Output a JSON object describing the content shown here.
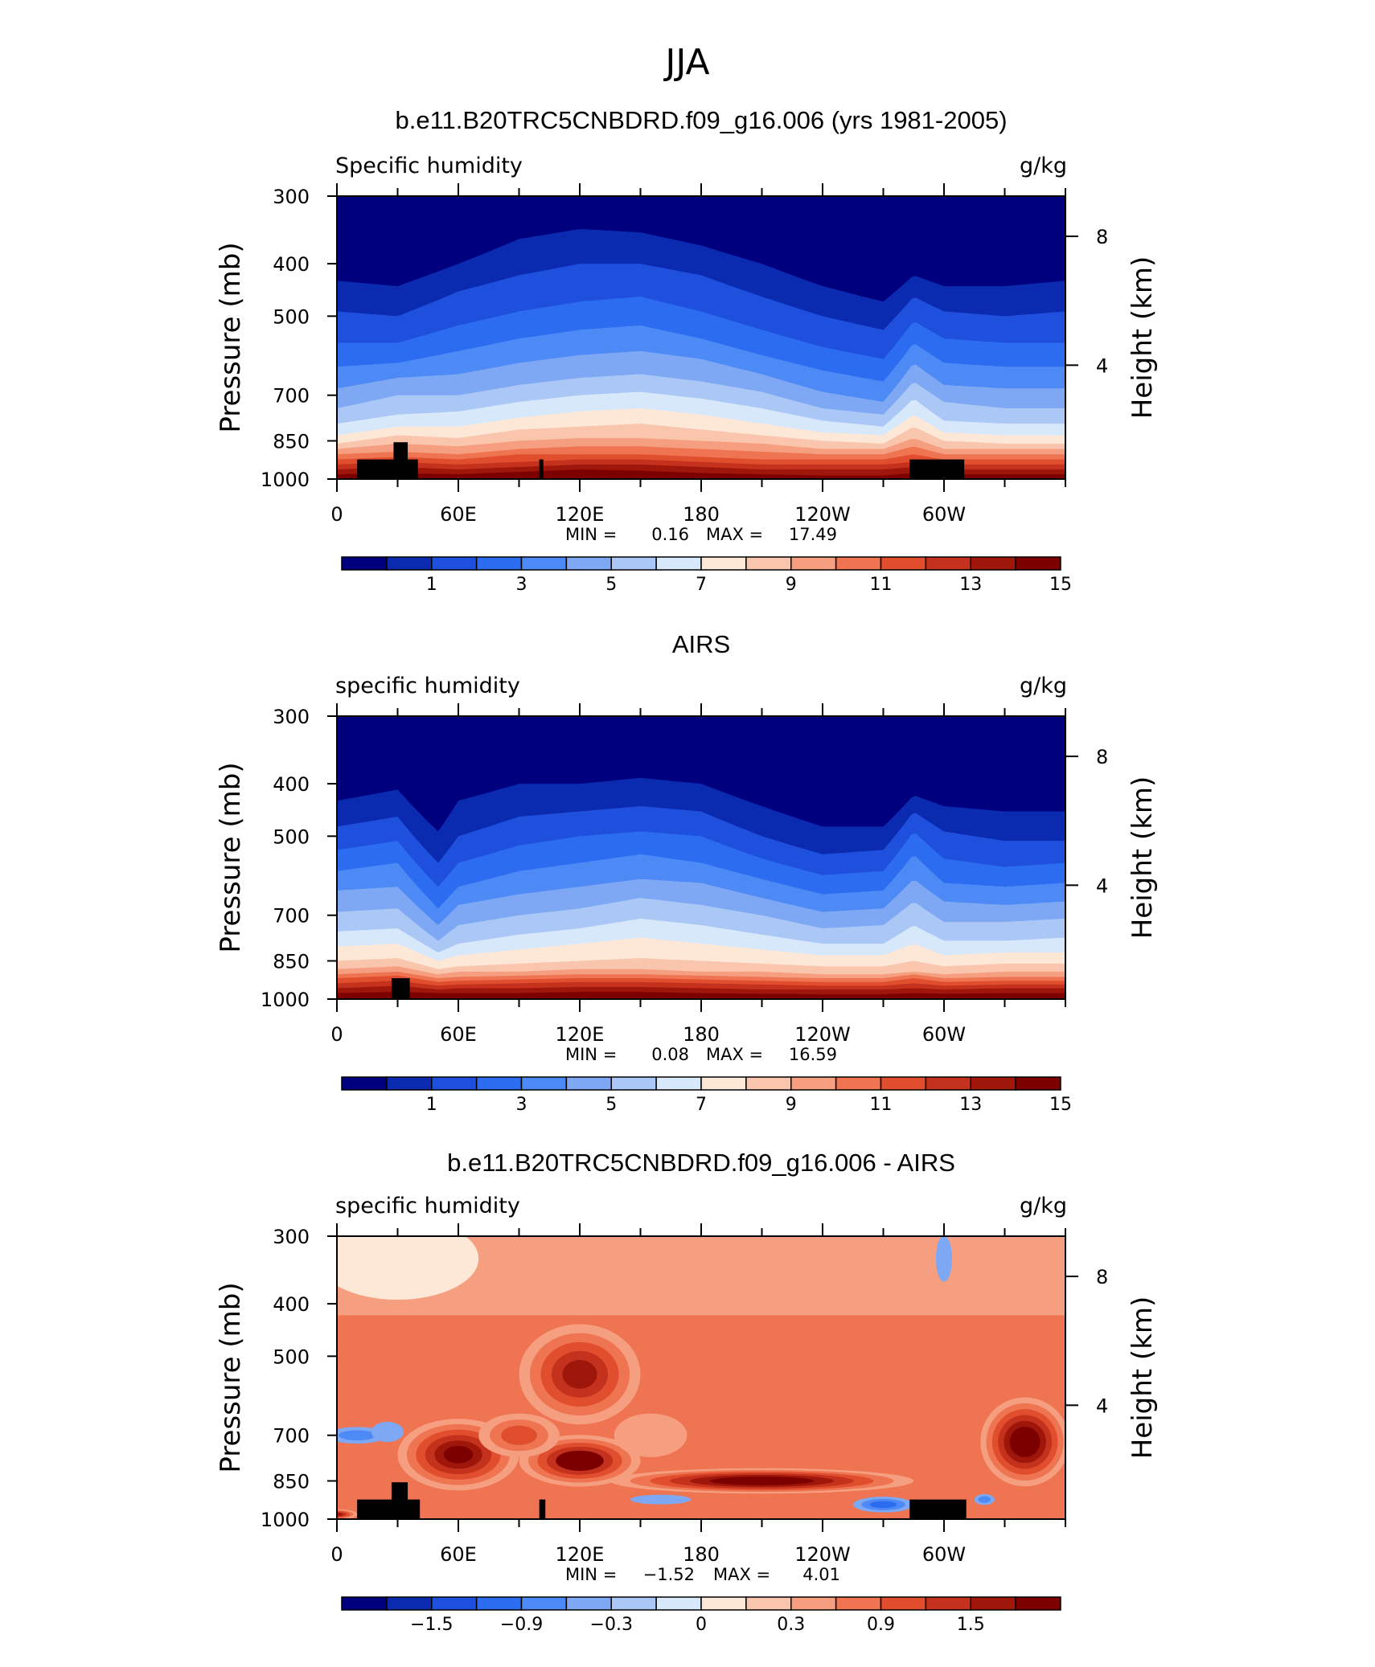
{
  "page_title": "JJA",
  "colors": {
    "levels_main": [
      "#00007f",
      "#0a2ab0",
      "#1e4fdd",
      "#2c6cf1",
      "#4d8af5",
      "#7ea8f3",
      "#aac7f5",
      "#d7e8fb",
      "#fde7d7",
      "#f9c5ad",
      "#f59f80",
      "#ee7452",
      "#e04e2e",
      "#c4311c",
      "#9f160b",
      "#7d0000"
    ],
    "levels_diff": [
      "#00007f",
      "#0a2ab0",
      "#1e4fdd",
      "#2c6cf1",
      "#4d8af5",
      "#7ea8f3",
      "#aac7f5",
      "#d7e8fb",
      "#fde7d7",
      "#f9c5ad",
      "#f59f80",
      "#ee7452",
      "#e04e2e",
      "#c4311c",
      "#9f160b",
      "#7d0000"
    ],
    "topography": "#000000"
  },
  "chart_data": [
    {
      "type": "heatmap",
      "title": "b.e11.B20TRC5CNBDRD.f09_g16.006 (yrs 1981-2005)",
      "left_label": "Specific humidity",
      "right_label": "g/kg",
      "ylabel": "Pressure (mb)",
      "ylabel_right": "Height (km)",
      "y_ticks": [
        "300",
        "400",
        "500",
        "700",
        "850",
        "1000"
      ],
      "y_ticks_right": [
        "8",
        "4"
      ],
      "x_ticks": [
        "0",
        "60E",
        "120E",
        "180",
        "120W",
        "60W"
      ],
      "stats": {
        "min_label": "MIN =",
        "min": "0.16",
        "max_label": "MAX =",
        "max": "17.49"
      },
      "colorbar_labels": [
        "1",
        "3",
        "5",
        "7",
        "9",
        "11",
        "13",
        "15"
      ],
      "contour_bands_pressure_mb": {
        "note": "approximate pressure (mb) of successive contour boundaries at selected longitudes (deg east)",
        "longitudes": [
          0,
          30,
          60,
          90,
          120,
          150,
          180,
          210,
          240,
          270,
          285,
          300,
          330,
          360
        ],
        "levels": [
          [
            430,
            440,
            400,
            360,
            345,
            350,
            370,
            400,
            440,
            470,
            420,
            440,
            440,
            430
          ],
          [
            490,
            500,
            450,
            420,
            400,
            400,
            420,
            460,
            500,
            530,
            460,
            490,
            500,
            490
          ],
          [
            560,
            560,
            520,
            490,
            470,
            460,
            490,
            530,
            570,
            600,
            510,
            550,
            560,
            560
          ],
          [
            620,
            610,
            580,
            550,
            530,
            520,
            550,
            590,
            630,
            660,
            560,
            610,
            620,
            620
          ],
          [
            680,
            650,
            640,
            610,
            590,
            580,
            600,
            640,
            690,
            720,
            610,
            670,
            680,
            680
          ],
          [
            740,
            700,
            700,
            670,
            650,
            640,
            660,
            690,
            740,
            760,
            660,
            720,
            740,
            740
          ],
          [
            790,
            760,
            750,
            720,
            700,
            690,
            710,
            740,
            780,
            800,
            710,
            780,
            790,
            790
          ],
          [
            830,
            800,
            800,
            770,
            750,
            740,
            760,
            790,
            820,
            830,
            760,
            820,
            830,
            830
          ],
          [
            860,
            830,
            840,
            810,
            800,
            790,
            810,
            830,
            850,
            860,
            800,
            850,
            860,
            860
          ],
          [
            880,
            860,
            870,
            850,
            840,
            840,
            850,
            860,
            880,
            880,
            840,
            880,
            880,
            880
          ],
          [
            900,
            890,
            900,
            880,
            870,
            870,
            880,
            890,
            900,
            900,
            870,
            900,
            900,
            900
          ],
          [
            920,
            910,
            920,
            900,
            900,
            900,
            910,
            920,
            920,
            920,
            900,
            920,
            920,
            920
          ],
          [
            940,
            930,
            940,
            930,
            920,
            920,
            930,
            940,
            940,
            940,
            930,
            940,
            940,
            940
          ],
          [
            960,
            950,
            960,
            950,
            940,
            940,
            950,
            960,
            960,
            960,
            950,
            960,
            960,
            960
          ],
          [
            980,
            975,
            980,
            970,
            960,
            965,
            975,
            980,
            985,
            985,
            975,
            980,
            980,
            980
          ]
        ]
      }
    },
    {
      "type": "heatmap",
      "title": "AIRS",
      "left_label": "specific humidity",
      "right_label": "g/kg",
      "ylabel": "Pressure (mb)",
      "ylabel_right": "Height (km)",
      "y_ticks": [
        "300",
        "400",
        "500",
        "700",
        "850",
        "1000"
      ],
      "y_ticks_right": [
        "8",
        "4"
      ],
      "x_ticks": [
        "0",
        "60E",
        "120E",
        "180",
        "120W",
        "60W"
      ],
      "stats": {
        "min_label": "MIN =",
        "min": "0.08",
        "max_label": "MAX =",
        "max": "16.59"
      },
      "colorbar_labels": [
        "1",
        "3",
        "5",
        "7",
        "9",
        "11",
        "13",
        "15"
      ],
      "contour_bands_pressure_mb": {
        "longitudes": [
          0,
          30,
          50,
          60,
          90,
          120,
          150,
          180,
          210,
          240,
          270,
          285,
          300,
          330,
          360
        ],
        "levels": [
          [
            430,
            410,
            490,
            430,
            400,
            400,
            390,
            400,
            440,
            480,
            480,
            420,
            440,
            450,
            450
          ],
          [
            480,
            460,
            560,
            500,
            460,
            450,
            440,
            450,
            500,
            540,
            530,
            450,
            490,
            510,
            510
          ],
          [
            530,
            510,
            620,
            560,
            520,
            500,
            490,
            500,
            550,
            590,
            580,
            490,
            550,
            570,
            560
          ],
          [
            580,
            560,
            680,
            620,
            580,
            560,
            540,
            560,
            600,
            640,
            630,
            540,
            610,
            620,
            610
          ],
          [
            630,
            620,
            730,
            670,
            640,
            620,
            600,
            610,
            650,
            690,
            680,
            600,
            660,
            670,
            660
          ],
          [
            690,
            680,
            780,
            730,
            700,
            680,
            650,
            670,
            700,
            740,
            730,
            660,
            720,
            720,
            710
          ],
          [
            750,
            740,
            820,
            790,
            760,
            740,
            710,
            730,
            760,
            790,
            790,
            730,
            780,
            780,
            770
          ],
          [
            800,
            790,
            850,
            830,
            810,
            790,
            770,
            790,
            810,
            830,
            830,
            790,
            830,
            820,
            820
          ],
          [
            850,
            840,
            880,
            870,
            860,
            850,
            840,
            850,
            860,
            870,
            870,
            850,
            870,
            860,
            860
          ],
          [
            880,
            870,
            900,
            890,
            890,
            880,
            880,
            890,
            890,
            900,
            900,
            890,
            900,
            890,
            890
          ],
          [
            900,
            890,
            915,
            910,
            905,
            900,
            900,
            905,
            910,
            915,
            915,
            900,
            915,
            910,
            910
          ],
          [
            915,
            905,
            930,
            925,
            920,
            915,
            915,
            920,
            925,
            930,
            930,
            915,
            930,
            925,
            925
          ],
          [
            935,
            925,
            945,
            940,
            935,
            930,
            930,
            935,
            940,
            945,
            945,
            935,
            945,
            940,
            940
          ],
          [
            955,
            945,
            960,
            955,
            955,
            950,
            950,
            955,
            960,
            960,
            960,
            955,
            960,
            955,
            955
          ],
          [
            975,
            970,
            975,
            975,
            975,
            970,
            970,
            975,
            978,
            980,
            980,
            975,
            978,
            975,
            975
          ]
        ]
      }
    },
    {
      "type": "heatmap",
      "title": "b.e11.B20TRC5CNBDRD.f09_g16.006 - AIRS",
      "left_label": "specific humidity",
      "right_label": "g/kg",
      "ylabel": "Pressure (mb)",
      "ylabel_right": "Height (km)",
      "y_ticks": [
        "300",
        "400",
        "500",
        "700",
        "850",
        "1000"
      ],
      "y_ticks_right": [
        "8",
        "4"
      ],
      "x_ticks": [
        "0",
        "60E",
        "120E",
        "180",
        "120W",
        "60W"
      ],
      "stats": {
        "min_label": "MIN =",
        "min": "−1.52",
        "max_label": "MAX =",
        "max": "4.01"
      },
      "colorbar_labels": [
        "−1.5",
        "−0.9",
        "−0.3",
        "0",
        "0.3",
        "0.9",
        "1.5"
      ],
      "blobs": [
        {
          "lon": 30,
          "p": 330,
          "rlon": 40,
          "rp": 110,
          "value": 0.15
        },
        {
          "lon": 120,
          "p": 540,
          "rlon": 30,
          "rp": 220,
          "value": 1.6
        },
        {
          "lon": 60,
          "p": 760,
          "rlon": 30,
          "rp": 220,
          "value": 2.0
        },
        {
          "lon": 120,
          "p": 780,
          "rlon": 30,
          "rp": 160,
          "value": 2.2
        },
        {
          "lon": 90,
          "p": 700,
          "rlon": 20,
          "rp": 120,
          "value": 1.2
        },
        {
          "lon": 155,
          "p": 700,
          "rlon": 18,
          "rp": 120,
          "value": 0.45
        },
        {
          "lon": 210,
          "p": 850,
          "rlon": 75,
          "rp": 80,
          "value": 2.4
        },
        {
          "lon": 340,
          "p": 720,
          "rlon": 22,
          "rp": 260,
          "value": 2.4
        },
        {
          "lon": 10,
          "p": 700,
          "rlon": 15,
          "rp": 40,
          "value": -0.7
        },
        {
          "lon": 25,
          "p": 690,
          "rlon": 8,
          "rp": 50,
          "value": -0.4
        },
        {
          "lon": 160,
          "p": 920,
          "rlon": 15,
          "rp": 25,
          "value": -0.5
        },
        {
          "lon": 270,
          "p": 940,
          "rlon": 15,
          "rp": 50,
          "value": -0.9
        },
        {
          "lon": 320,
          "p": 920,
          "rlon": 5,
          "rp": 30,
          "value": -0.6
        },
        {
          "lon": 300,
          "p": 330,
          "rlon": 4,
          "rp": 60,
          "value": -0.3
        },
        {
          "lon": 0,
          "p": 980,
          "rlon": 10,
          "rp": 30,
          "value": 1.8
        }
      ]
    }
  ],
  "topography": [
    {
      "panel": 0,
      "blocks": [
        {
          "lon0": 10,
          "lon1": 40,
          "p": 920
        },
        {
          "lon0": 28,
          "lon1": 35,
          "p": 855
        },
        {
          "lon0": 100,
          "lon1": 102,
          "p": 920
        },
        {
          "lon0": 283,
          "lon1": 310,
          "p": 920
        }
      ]
    },
    {
      "panel": 1,
      "blocks": [
        {
          "lon0": 27,
          "lon1": 36,
          "p": 915
        }
      ]
    },
    {
      "panel": 2,
      "blocks": [
        {
          "lon0": 10,
          "lon1": 41,
          "p": 920
        },
        {
          "lon0": 27,
          "lon1": 35,
          "p": 855
        },
        {
          "lon0": 100,
          "lon1": 103,
          "p": 920
        },
        {
          "lon0": 283,
          "lon1": 311,
          "p": 920
        }
      ]
    }
  ]
}
